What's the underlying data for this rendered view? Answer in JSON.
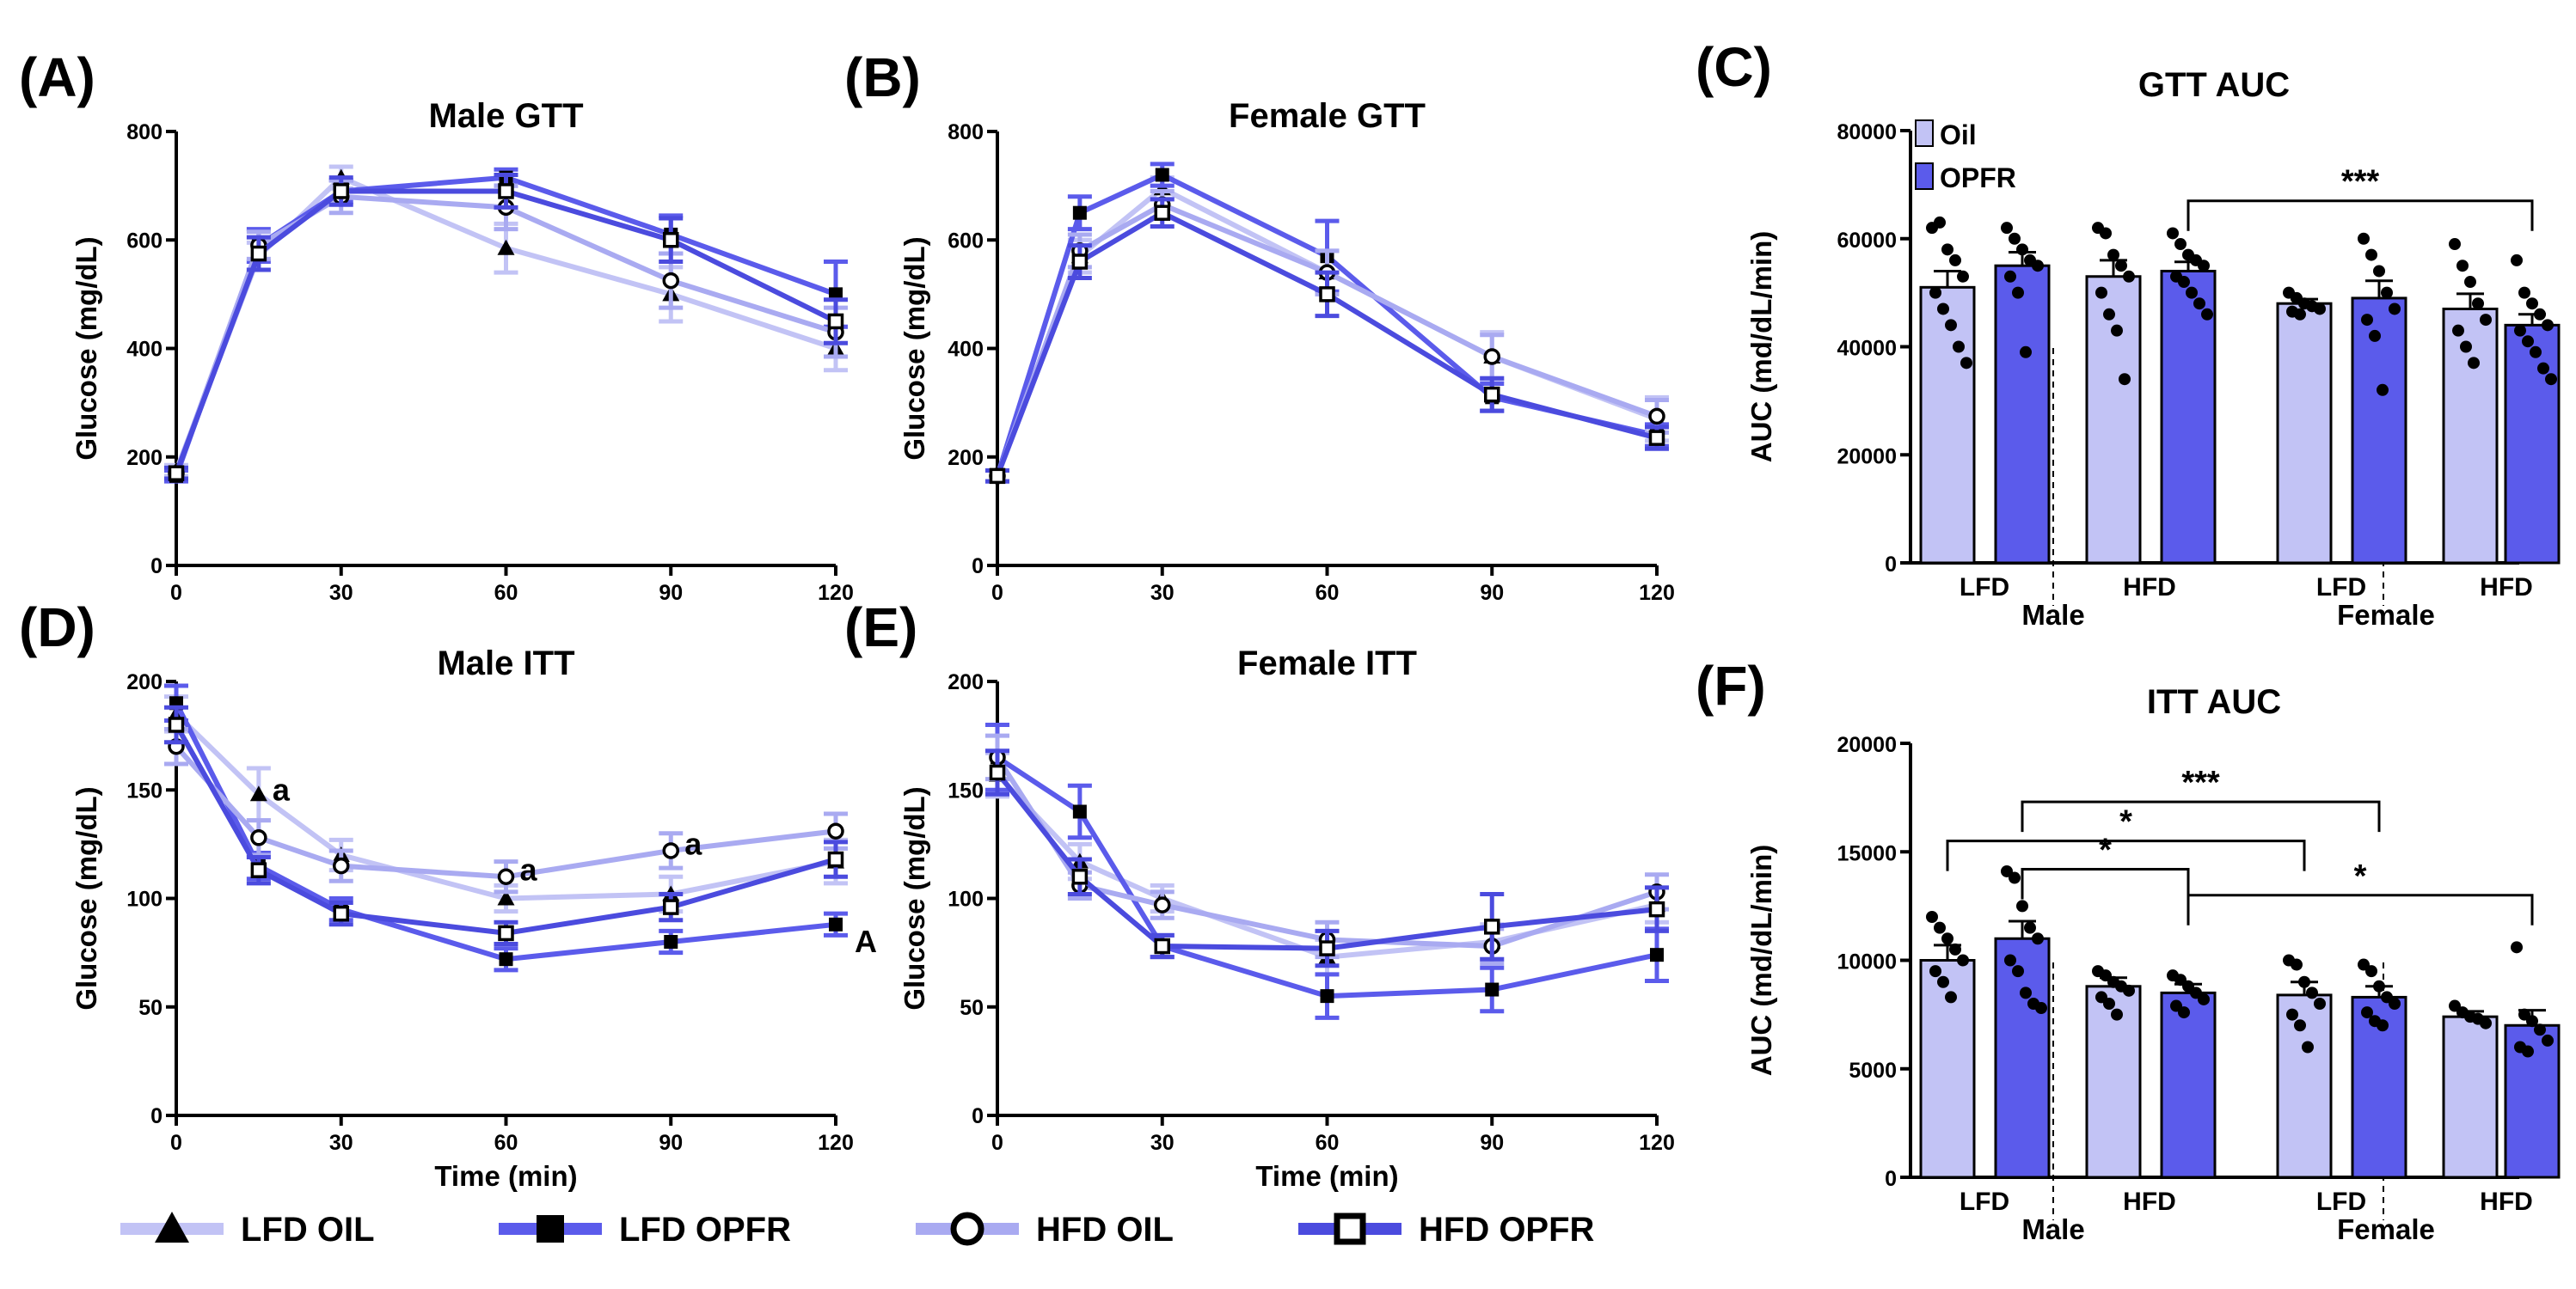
{
  "colors": {
    "oil": "#C2C3F5",
    "opfr": "#5B5BEB",
    "lfd_oil": "#C2C3F5",
    "lfd_opfr": "#5B5BEB",
    "hfd_oil": "#A9AAF1",
    "hfd_opfr": "#4B4BDE"
  },
  "legend": {
    "items": [
      {
        "label": "LFD OIL",
        "marker": "triangle",
        "color_key": "lfd_oil"
      },
      {
        "label": "LFD OPFR",
        "marker": "filled-square",
        "color_key": "lfd_opfr"
      },
      {
        "label": "HFD OIL",
        "marker": "open-circle",
        "color_key": "hfd_oil"
      },
      {
        "label": "HFD OPFR",
        "marker": "open-square",
        "color_key": "hfd_opfr"
      }
    ]
  },
  "chart_data": [
    {
      "id": "A",
      "panel_label": "(A)",
      "type": "line",
      "title": "Male GTT",
      "xlabel": "",
      "ylabel": "Glucose (mg/dL)",
      "x": [
        0,
        15,
        30,
        60,
        90,
        120
      ],
      "xlim": [
        0,
        120
      ],
      "ylim": [
        0,
        800
      ],
      "xticks": [
        0,
        30,
        60,
        90,
        120
      ],
      "yticks": [
        0,
        200,
        400,
        600,
        800
      ],
      "series": [
        {
          "name": "LFD OIL",
          "color_key": "lfd_oil",
          "marker": "triangle",
          "values": [
            175,
            570,
            715,
            585,
            500,
            400
          ],
          "errors": [
            10,
            25,
            20,
            45,
            50,
            40
          ]
        },
        {
          "name": "LFD OPFR",
          "color_key": "lfd_opfr",
          "marker": "filled-square",
          "values": [
            165,
            590,
            690,
            715,
            610,
            500
          ],
          "errors": [
            10,
            30,
            20,
            15,
            35,
            60
          ]
        },
        {
          "name": "HFD OIL",
          "color_key": "hfd_oil",
          "marker": "open-circle",
          "values": [
            170,
            590,
            680,
            660,
            525,
            430
          ],
          "errors": [
            10,
            25,
            30,
            40,
            50,
            45
          ]
        },
        {
          "name": "HFD OPFR",
          "color_key": "hfd_opfr",
          "marker": "open-square",
          "values": [
            170,
            575,
            690,
            690,
            600,
            450
          ],
          "errors": [
            10,
            30,
            25,
            30,
            40,
            40
          ]
        }
      ],
      "annotations": []
    },
    {
      "id": "B",
      "panel_label": "(B)",
      "type": "line",
      "title": "Female GTT",
      "xlabel": "",
      "ylabel": "Glucose (mg/dL)",
      "x": [
        0,
        15,
        30,
        60,
        90,
        120
      ],
      "xlim": [
        0,
        120
      ],
      "ylim": [
        0,
        800
      ],
      "xticks": [
        0,
        30,
        60,
        90,
        120
      ],
      "yticks": [
        0,
        200,
        400,
        600,
        800
      ],
      "series": [
        {
          "name": "LFD OIL",
          "color_key": "lfd_oil",
          "marker": "triangle",
          "values": [
            165,
            570,
            695,
            540,
            385,
            270
          ],
          "errors": [
            10,
            30,
            20,
            40,
            45,
            40
          ]
        },
        {
          "name": "LFD OPFR",
          "color_key": "lfd_opfr",
          "marker": "filled-square",
          "values": [
            165,
            650,
            720,
            570,
            310,
            240
          ],
          "errors": [
            10,
            30,
            20,
            65,
            25,
            20
          ]
        },
        {
          "name": "HFD OIL",
          "color_key": "hfd_oil",
          "marker": "open-circle",
          "values": [
            165,
            580,
            665,
            540,
            385,
            275
          ],
          "errors": [
            10,
            30,
            25,
            40,
            40,
            30
          ]
        },
        {
          "name": "HFD OPFR",
          "color_key": "hfd_opfr",
          "marker": "open-square",
          "values": [
            165,
            560,
            650,
            500,
            315,
            235
          ],
          "errors": [
            10,
            30,
            25,
            40,
            30,
            20
          ]
        }
      ],
      "annotations": []
    },
    {
      "id": "C",
      "panel_label": "(C)",
      "type": "bar",
      "title": "GTT AUC",
      "ylabel": "AUC (md/dL/min)",
      "ylim": [
        0,
        80000
      ],
      "yticks": [
        0,
        20000,
        40000,
        60000,
        80000
      ],
      "groups": [
        "LFD",
        "HFD",
        "LFD",
        "HFD"
      ],
      "sexes": [
        "Male",
        "Female"
      ],
      "legend": [
        "Oil",
        "OPFR"
      ],
      "bars": [
        {
          "group": "Male LFD",
          "treatment": "Oil",
          "value": 51000,
          "error": 3000,
          "points": [
            62000,
            63000,
            58000,
            56000,
            53000,
            50000,
            47000,
            44000,
            40000,
            37000
          ]
        },
        {
          "group": "Male LFD",
          "treatment": "OPFR",
          "value": 55000,
          "error": 2500,
          "points": [
            62000,
            60000,
            58000,
            56000,
            55000,
            53000,
            50000,
            39000
          ]
        },
        {
          "group": "Male HFD",
          "treatment": "Oil",
          "value": 53000,
          "error": 3000,
          "points": [
            62000,
            61000,
            57000,
            55000,
            53000,
            50000,
            46000,
            43000,
            34000
          ]
        },
        {
          "group": "Male HFD",
          "treatment": "OPFR",
          "value": 54000,
          "error": 1700,
          "points": [
            61000,
            59000,
            57000,
            56000,
            55000,
            53000,
            52000,
            50000,
            48000,
            46000
          ]
        },
        {
          "group": "Female LFD",
          "treatment": "Oil",
          "value": 48000,
          "error": 800,
          "points": [
            50000,
            49000,
            48000,
            47500,
            47000,
            46500,
            46000
          ]
        },
        {
          "group": "Female LFD",
          "treatment": "OPFR",
          "value": 49000,
          "error": 3200,
          "points": [
            60000,
            57000,
            54000,
            50000,
            47000,
            45000,
            42000,
            32000
          ]
        },
        {
          "group": "Female HFD",
          "treatment": "Oil",
          "value": 47000,
          "error": 2800,
          "points": [
            59000,
            55000,
            52000,
            48000,
            45000,
            43000,
            40000,
            37000
          ]
        },
        {
          "group": "Female HFD",
          "treatment": "OPFR",
          "value": 44000,
          "error": 2000,
          "points": [
            56000,
            50000,
            48000,
            46000,
            44000,
            43000,
            41000,
            39000,
            36000,
            34000
          ]
        }
      ],
      "significance": [
        {
          "from": 3,
          "to": 7,
          "label": "***",
          "value": 67000
        }
      ]
    },
    {
      "id": "D",
      "panel_label": "(D)",
      "type": "line",
      "title": "Male ITT",
      "xlabel": "Time (min)",
      "ylabel": "Glucose (mg/dL)",
      "x": [
        0,
        15,
        30,
        60,
        90,
        120
      ],
      "xlim": [
        0,
        120
      ],
      "ylim": [
        0,
        200
      ],
      "xticks": [
        0,
        30,
        60,
        90,
        120
      ],
      "yticks": [
        0,
        50,
        100,
        150,
        200
      ],
      "series": [
        {
          "name": "LFD OIL",
          "color_key": "lfd_oil",
          "marker": "triangle",
          "values": [
            185,
            148,
            120,
            100,
            102,
            117
          ],
          "errors": [
            8,
            12,
            7,
            6,
            8,
            10
          ]
        },
        {
          "name": "LFD OPFR",
          "color_key": "lfd_opfr",
          "marker": "filled-square",
          "values": [
            190,
            115,
            95,
            72,
            80,
            88
          ],
          "errors": [
            8,
            6,
            5,
            5,
            5,
            5
          ]
        },
        {
          "name": "HFD OIL",
          "color_key": "hfd_oil",
          "marker": "open-circle",
          "values": [
            170,
            128,
            115,
            110,
            122,
            131
          ],
          "errors": [
            8,
            8,
            7,
            7,
            8,
            8
          ]
        },
        {
          "name": "HFD OPFR",
          "color_key": "hfd_opfr",
          "marker": "open-square",
          "values": [
            180,
            113,
            93,
            84,
            96,
            118
          ],
          "errors": [
            8,
            6,
            5,
            5,
            6,
            8
          ]
        }
      ],
      "annotations": [
        {
          "x": 15,
          "y": 150,
          "label": "a"
        },
        {
          "x": 60,
          "y": 113,
          "label": "a"
        },
        {
          "x": 90,
          "y": 125,
          "label": "a"
        },
        {
          "x": 120,
          "y": 80,
          "label": "A"
        }
      ]
    },
    {
      "id": "E",
      "panel_label": "(E)",
      "type": "line",
      "title": "Female ITT",
      "xlabel": "Time (min)",
      "ylabel": "Glucose (mg/dL)",
      "x": [
        0,
        15,
        30,
        60,
        90,
        120
      ],
      "xlim": [
        0,
        120
      ],
      "ylim": [
        0,
        200
      ],
      "xticks": [
        0,
        30,
        60,
        90,
        120
      ],
      "yticks": [
        0,
        50,
        100,
        150,
        200
      ],
      "series": [
        {
          "name": "LFD OIL",
          "color_key": "lfd_oil",
          "marker": "triangle",
          "values": [
            157,
            117,
            100,
            73,
            80,
            97
          ],
          "errors": [
            10,
            8,
            6,
            8,
            8,
            8
          ]
        },
        {
          "name": "LFD OPFR",
          "color_key": "lfd_opfr",
          "marker": "filled-square",
          "values": [
            165,
            140,
            78,
            55,
            58,
            74
          ],
          "errors": [
            15,
            12,
            5,
            10,
            10,
            12
          ]
        },
        {
          "name": "HFD OIL",
          "color_key": "hfd_oil",
          "marker": "open-circle",
          "values": [
            165,
            106,
            97,
            81,
            78,
            103
          ],
          "errors": [
            10,
            6,
            6,
            8,
            8,
            8
          ]
        },
        {
          "name": "HFD OPFR",
          "color_key": "hfd_opfr",
          "marker": "open-square",
          "values": [
            158,
            110,
            78,
            77,
            87,
            95
          ],
          "errors": [
            10,
            8,
            5,
            8,
            15,
            10
          ]
        }
      ],
      "annotations": []
    },
    {
      "id": "F",
      "panel_label": "(F)",
      "type": "bar",
      "title": "ITT AUC",
      "ylabel": "AUC (md/dL/min)",
      "ylim": [
        0,
        20000
      ],
      "yticks": [
        0,
        5000,
        10000,
        15000,
        20000
      ],
      "groups": [
        "LFD",
        "HFD",
        "LFD",
        "HFD"
      ],
      "sexes": [
        "Male",
        "Female"
      ],
      "bars": [
        {
          "group": "Male LFD",
          "treatment": "Oil",
          "value": 10000,
          "error": 700,
          "points": [
            12000,
            11500,
            11000,
            10500,
            10000,
            9500,
            9000,
            8300
          ]
        },
        {
          "group": "Male LFD",
          "treatment": "OPFR",
          "value": 11000,
          "error": 800,
          "points": [
            14100,
            13800,
            12500,
            11500,
            11000,
            10000,
            9500,
            8500,
            8000,
            7800
          ]
        },
        {
          "group": "Male HFD",
          "treatment": "Oil",
          "value": 8800,
          "error": 400,
          "points": [
            9500,
            9300,
            9000,
            8800,
            8600,
            8300,
            8000,
            7500
          ]
        },
        {
          "group": "Male HFD",
          "treatment": "OPFR",
          "value": 8500,
          "error": 400,
          "points": [
            9300,
            9100,
            8800,
            8500,
            8200,
            7900,
            7600
          ]
        },
        {
          "group": "Female LFD",
          "treatment": "Oil",
          "value": 8400,
          "error": 600,
          "points": [
            10000,
            9800,
            9000,
            8500,
            8000,
            7500,
            7000,
            6000
          ]
        },
        {
          "group": "Female LFD",
          "treatment": "OPFR",
          "value": 8300,
          "error": 500,
          "points": [
            9800,
            9500,
            8800,
            8300,
            8000,
            7600,
            7200,
            7000
          ]
        },
        {
          "group": "Female HFD",
          "treatment": "Oil",
          "value": 7400,
          "error": 250,
          "points": [
            7900,
            7600,
            7400,
            7300,
            7100
          ]
        },
        {
          "group": "Female HFD",
          "treatment": "OPFR",
          "value": 7000,
          "error": 700,
          "points": [
            10600,
            7500,
            7200,
            6800,
            6300,
            6000,
            5800
          ]
        }
      ],
      "significance": [
        {
          "from": 0,
          "to": 4,
          "label": "*",
          "value": 15500
        },
        {
          "from": 1,
          "to": 5,
          "label": "***",
          "value": 17300
        },
        {
          "from": 1,
          "to": 3,
          "label": "*",
          "value": 14200
        },
        {
          "from": 3,
          "to": 7,
          "label": "*",
          "value": 13000
        }
      ]
    }
  ]
}
